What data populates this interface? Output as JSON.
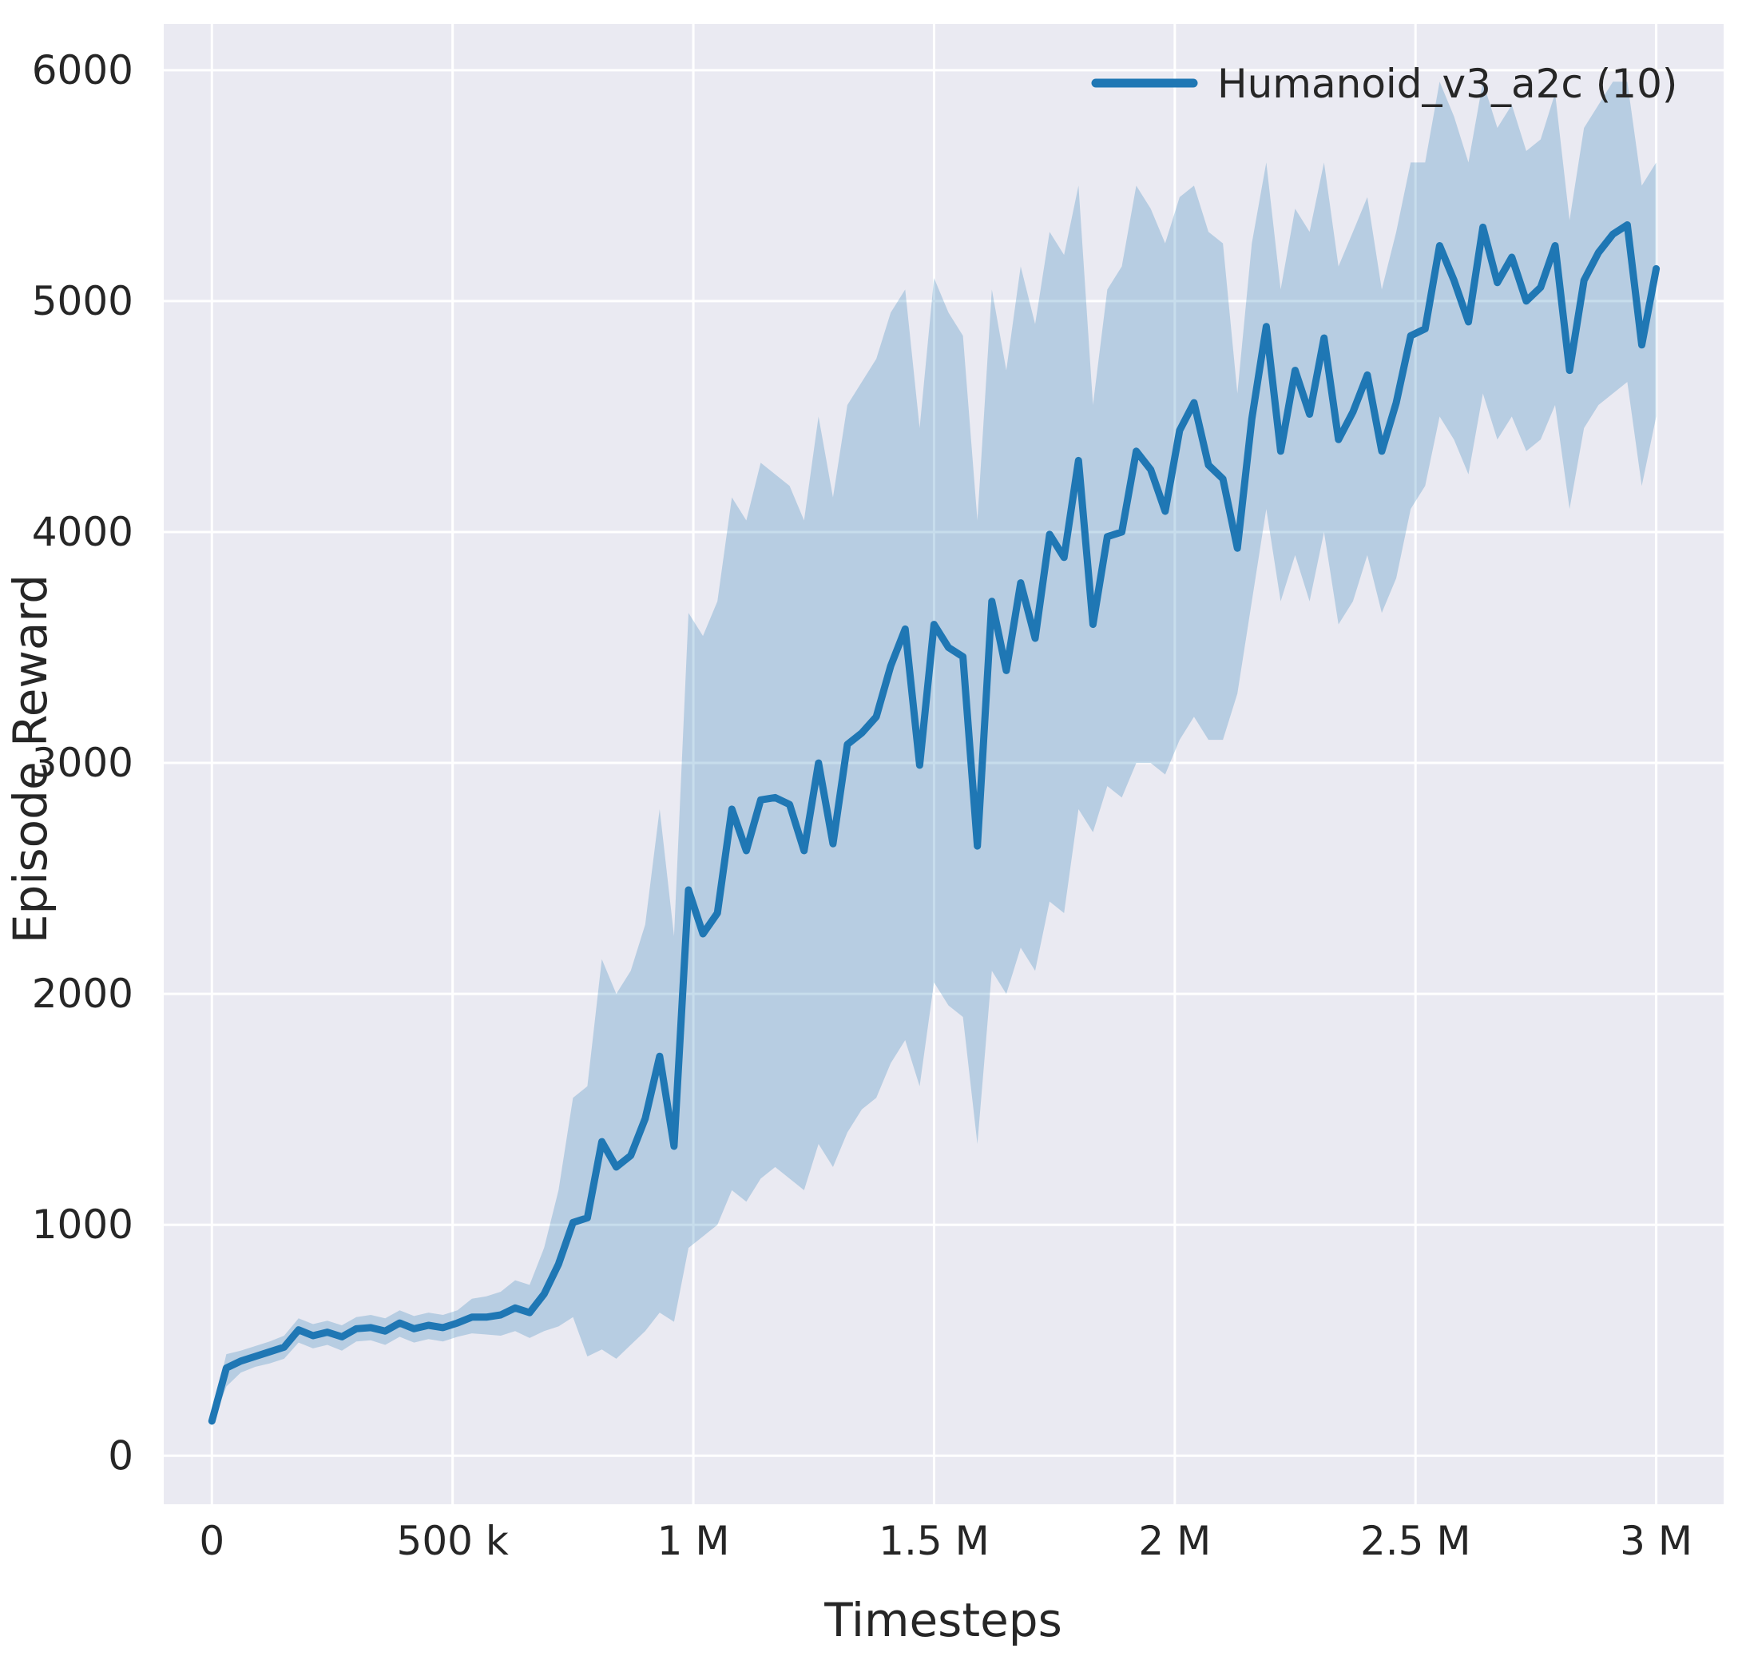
{
  "chart_data": {
    "type": "line",
    "title": "",
    "xlabel": "Timesteps",
    "ylabel": "Episode Reward",
    "xlim": [
      -100000,
      3140000
    ],
    "ylim": [
      -210,
      6200
    ],
    "grid": true,
    "legend_position": "upper right",
    "colors": {
      "plot_bg": "#eaeaf2",
      "grid": "#ffffff",
      "text": "#262626",
      "line": "#1f77b4"
    },
    "xticks": {
      "values": [
        0,
        500000,
        1000000,
        1500000,
        2000000,
        2500000,
        3000000
      ],
      "labels": [
        "0",
        "500 k",
        "1 M",
        "1.5 M",
        "2 M",
        "2.5 M",
        "3 M"
      ]
    },
    "yticks": {
      "values": [
        0,
        1000,
        2000,
        3000,
        4000,
        5000,
        6000
      ],
      "labels": [
        "0",
        "1000",
        "2000",
        "3000",
        "4000",
        "5000",
        "6000"
      ]
    },
    "series": [
      {
        "name": "Humanoid_v3_a2c (10)",
        "color": "#1f77b4",
        "band_opacity": 0.25,
        "x": [
          0,
          30000,
          60000,
          90000,
          120000,
          150000,
          180000,
          210000,
          240000,
          270000,
          300000,
          330000,
          360000,
          390000,
          420000,
          450000,
          480000,
          510000,
          540000,
          570000,
          600000,
          630000,
          660000,
          690000,
          720000,
          750000,
          780000,
          810000,
          840000,
          870000,
          900000,
          930000,
          960000,
          990000,
          1020000,
          1050000,
          1080000,
          1110000,
          1140000,
          1170000,
          1200000,
          1230000,
          1260000,
          1290000,
          1320000,
          1350000,
          1380000,
          1410000,
          1440000,
          1470000,
          1500000,
          1530000,
          1560000,
          1590000,
          1620000,
          1650000,
          1680000,
          1710000,
          1740000,
          1770000,
          1800000,
          1830000,
          1860000,
          1890000,
          1920000,
          1950000,
          1980000,
          2010000,
          2040000,
          2070000,
          2100000,
          2130000,
          2160000,
          2190000,
          2220000,
          2250000,
          2280000,
          2310000,
          2340000,
          2370000,
          2400000,
          2430000,
          2460000,
          2490000,
          2520000,
          2550000,
          2580000,
          2610000,
          2640000,
          2670000,
          2700000,
          2730000,
          2760000,
          2790000,
          2820000,
          2850000,
          2880000,
          2910000,
          2940000,
          2970000,
          3000000
        ],
        "mean": [
          150,
          380,
          410,
          430,
          450,
          470,
          545,
          520,
          535,
          515,
          550,
          555,
          540,
          575,
          550,
          565,
          555,
          575,
          600,
          600,
          610,
          640,
          620,
          700,
          830,
          1010,
          1030,
          1360,
          1250,
          1300,
          1460,
          1730,
          1340,
          2450,
          2260,
          2350,
          2800,
          2620,
          2840,
          2850,
          2820,
          2620,
          3000,
          2650,
          3080,
          3130,
          3200,
          3420,
          3580,
          2990,
          3600,
          3500,
          3460,
          2640,
          3700,
          3400,
          3780,
          3540,
          3990,
          3890,
          4310,
          3600,
          3980,
          4000,
          4350,
          4270,
          4090,
          4440,
          4560,
          4290,
          4230,
          3930,
          4490,
          4890,
          4350,
          4700,
          4510,
          4840,
          4400,
          4520,
          4680,
          4350,
          4560,
          4850,
          4880,
          5240,
          5090,
          4910,
          5320,
          5080,
          5190,
          5000,
          5060,
          5240,
          4700,
          5090,
          5210,
          5290,
          5330,
          4810,
          5140
        ],
        "lower": [
          130,
          300,
          360,
          385,
          400,
          420,
          490,
          465,
          480,
          455,
          495,
          500,
          480,
          515,
          490,
          505,
          495,
          515,
          530,
          525,
          520,
          540,
          510,
          540,
          560,
          600,
          430,
          460,
          420,
          480,
          540,
          620,
          580,
          900,
          950,
          1000,
          1150,
          1100,
          1200,
          1250,
          1200,
          1150,
          1350,
          1250,
          1400,
          1500,
          1550,
          1700,
          1800,
          1600,
          2050,
          1950,
          1900,
          1350,
          2100,
          2000,
          2200,
          2100,
          2400,
          2350,
          2800,
          2700,
          2900,
          2850,
          3000,
          3000,
          2950,
          3100,
          3200,
          3100,
          3100,
          3300,
          3700,
          4100,
          3700,
          3900,
          3700,
          4000,
          3600,
          3700,
          3900,
          3650,
          3800,
          4100,
          4200,
          4500,
          4400,
          4250,
          4600,
          4400,
          4500,
          4350,
          4400,
          4550,
          4100,
          4450,
          4550,
          4600,
          4650,
          4200,
          4500
        ],
        "upper": [
          175,
          440,
          455,
          475,
          495,
          520,
          595,
          570,
          585,
          565,
          600,
          610,
          595,
          630,
          605,
          620,
          610,
          630,
          680,
          690,
          710,
          760,
          740,
          900,
          1150,
          1550,
          1600,
          2150,
          2000,
          2100,
          2300,
          2800,
          2250,
          3650,
          3550,
          3700,
          4150,
          4050,
          4300,
          4250,
          4200,
          4050,
          4500,
          4150,
          4550,
          4650,
          4750,
          4950,
          5050,
          4450,
          5100,
          4950,
          4850,
          4050,
          5050,
          4700,
          5150,
          4900,
          5300,
          5200,
          5500,
          4550,
          5050,
          5150,
          5500,
          5400,
          5250,
          5450,
          5500,
          5300,
          5250,
          4600,
          5250,
          5600,
          5050,
          5400,
          5300,
          5600,
          5150,
          5300,
          5450,
          5050,
          5300,
          5600,
          5600,
          5950,
          5800,
          5600,
          5950,
          5750,
          5850,
          5650,
          5700,
          5900,
          5350,
          5750,
          5850,
          5950,
          5950,
          5500,
          5600
        ]
      }
    ]
  }
}
